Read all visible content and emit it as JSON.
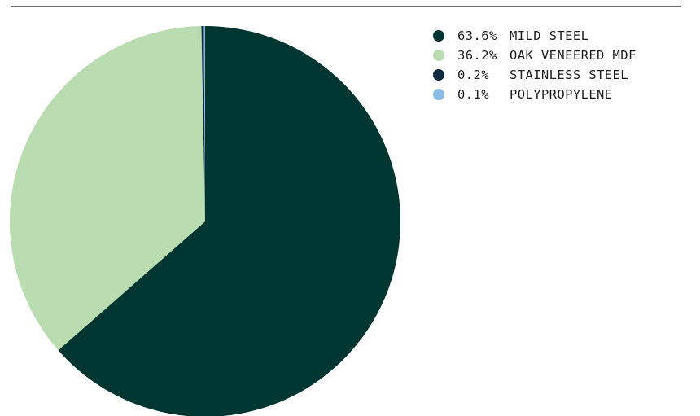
{
  "chart_data": {
    "type": "pie",
    "slices": [
      {
        "label": "MILD STEEL",
        "value": 63.6,
        "value_label": "63.6%",
        "color": "#003631"
      },
      {
        "label": "OAK VENEERED MDF",
        "value": 36.2,
        "value_label": "36.2%",
        "color": "#b9dcb0"
      },
      {
        "label": "STAINLESS STEEL",
        "value": 0.2,
        "value_label": "0.2%",
        "color": "#0d2a3f"
      },
      {
        "label": "POLYPROPYLENE",
        "value": 0.1,
        "value_label": "0.1%",
        "color": "#8abce3"
      }
    ],
    "start_angle_deg": 0,
    "direction": "clockwise",
    "legend_position": "top-right"
  }
}
